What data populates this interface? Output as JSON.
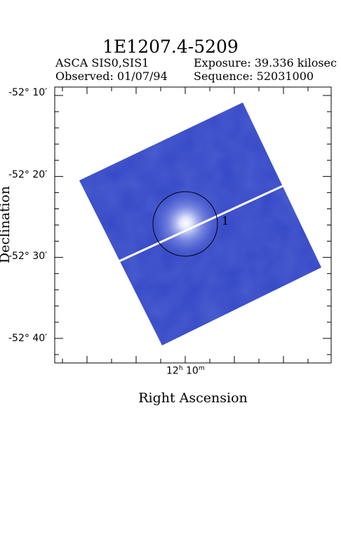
{
  "header": {
    "title": "1E1207.4-5209",
    "instrument": "ASCA SIS0,SIS1",
    "exposure": "Exposure: 39.336 kilosec",
    "observed": "Observed: 01/07/94",
    "sequence": "Sequence: 52031000"
  },
  "colors": {
    "image_base": "#3347c7",
    "image_dark": "#2a3bb0",
    "source_glow": "#ffffff",
    "frame": "#000000"
  },
  "chart_data": {
    "type": "image",
    "xlabel": "Right Ascension",
    "ylabel": "Declination",
    "y_ticks": [
      {
        "label": "-52° 10′",
        "dec_arcmin": -3130
      },
      {
        "label": "-52° 20′",
        "dec_arcmin": -3140
      },
      {
        "label": "-52° 30′",
        "dec_arcmin": -3150
      },
      {
        "label": "-52° 40′",
        "dec_arcmin": -3160
      }
    ],
    "x_ticks": [
      {
        "h": "12",
        "m": "10",
        "ra_min": 730
      }
    ],
    "regions": [
      {
        "label": "1",
        "shape": "circle"
      }
    ],
    "grid": false
  }
}
